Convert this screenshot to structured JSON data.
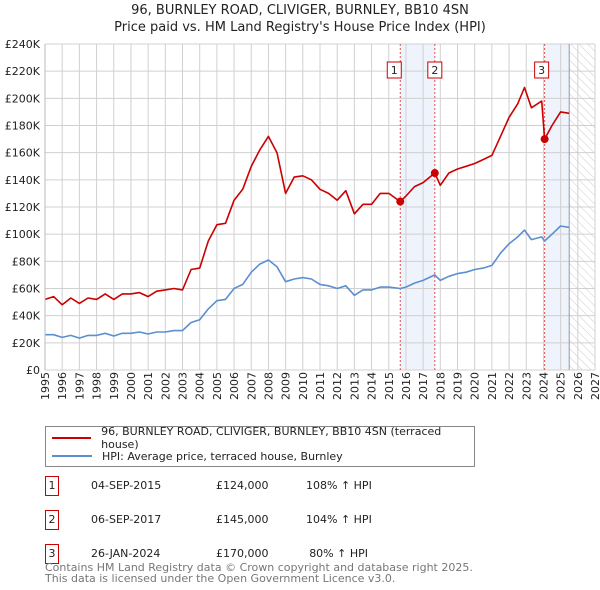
{
  "title": "96, BURNLEY ROAD, CLIVIGER, BURNLEY, BB10 4SN",
  "subtitle": "Price paid vs. HM Land Registry's House Price Index (HPI)",
  "colors": {
    "property": "#cc0000",
    "hpi": "#5b8fd0",
    "shade": "#eef3fc",
    "marker_line": "#e05050"
  },
  "chart_data": {
    "type": "line",
    "xlim": [
      1995,
      2027
    ],
    "ylim": [
      0,
      240000
    ],
    "grid": true,
    "x_ticks": [
      "1995",
      "1996",
      "1997",
      "1998",
      "1999",
      "2000",
      "2001",
      "2002",
      "2003",
      "2004",
      "2005",
      "2006",
      "2007",
      "2008",
      "2009",
      "2010",
      "2011",
      "2012",
      "2013",
      "2014",
      "2015",
      "2016",
      "2017",
      "2018",
      "2019",
      "2020",
      "2021",
      "2022",
      "2023",
      "2024",
      "2025",
      "2026",
      "2027"
    ],
    "y_ticks": [
      "£0",
      "£20K",
      "£40K",
      "£60K",
      "£80K",
      "£100K",
      "£120K",
      "£140K",
      "£160K",
      "£180K",
      "£200K",
      "£220K",
      "£240K"
    ],
    "forecast_start": 2025.5,
    "series": [
      {
        "name": "96, BURNLEY ROAD, CLIVIGER, BURNLEY, BB10 4SN (terraced house)",
        "color": "#cc0000",
        "x": [
          1995,
          1995.5,
          1996,
          1996.5,
          1997,
          1997.5,
          1998,
          1998.5,
          1999,
          1999.5,
          2000,
          2000.5,
          2001,
          2001.5,
          2002,
          2002.5,
          2003,
          2003.5,
          2004,
          2004.5,
          2005,
          2005.5,
          2006,
          2006.5,
          2007,
          2007.5,
          2008,
          2008.5,
          2009,
          2009.5,
          2010,
          2010.5,
          2011,
          2011.5,
          2012,
          2012.5,
          2013,
          2013.5,
          2014,
          2014.5,
          2015,
          2015.67,
          2016,
          2016.5,
          2017,
          2017.68,
          2018,
          2018.5,
          2019,
          2019.5,
          2020,
          2020.5,
          2021,
          2021.5,
          2022,
          2022.5,
          2022.9,
          2023.3,
          2023.9,
          2024.07,
          2024.5,
          2025,
          2025.5
        ],
        "y": [
          52000,
          54000,
          48000,
          53000,
          49000,
          53000,
          52000,
          56000,
          52000,
          56000,
          56000,
          57000,
          54000,
          58000,
          59000,
          60000,
          59000,
          74000,
          75000,
          95000,
          107000,
          108000,
          125000,
          133000,
          150000,
          162000,
          172000,
          160000,
          130000,
          142000,
          143000,
          140000,
          133000,
          130000,
          125000,
          132000,
          115000,
          122000,
          122000,
          130000,
          130000,
          124000,
          128000,
          135000,
          138000,
          145000,
          136000,
          145000,
          148000,
          150000,
          152000,
          155000,
          158000,
          172000,
          186000,
          196000,
          208000,
          193000,
          198000,
          170000,
          180000,
          190000,
          189000
        ]
      },
      {
        "name": "HPI: Average price, terraced house, Burnley",
        "color": "#5b8fd0",
        "x": [
          1995,
          1995.5,
          1996,
          1996.5,
          1997,
          1997.5,
          1998,
          1998.5,
          1999,
          1999.5,
          2000,
          2000.5,
          2001,
          2001.5,
          2002,
          2002.5,
          2003,
          2003.5,
          2004,
          2004.5,
          2005,
          2005.5,
          2006,
          2006.5,
          2007,
          2007.5,
          2008,
          2008.5,
          2009,
          2009.5,
          2010,
          2010.5,
          2011,
          2011.5,
          2012,
          2012.5,
          2013,
          2013.5,
          2014,
          2014.5,
          2015,
          2015.67,
          2016,
          2016.5,
          2017,
          2017.68,
          2018,
          2018.5,
          2019,
          2019.5,
          2020,
          2020.5,
          2021,
          2021.5,
          2022,
          2022.5,
          2022.9,
          2023.3,
          2023.9,
          2024.07,
          2024.5,
          2025,
          2025.5
        ],
        "y": [
          26000,
          26000,
          24000,
          25500,
          23500,
          25500,
          25500,
          27000,
          25000,
          27000,
          27000,
          28000,
          26500,
          28000,
          28000,
          29000,
          29000,
          35000,
          37000,
          45000,
          51000,
          52000,
          60000,
          63000,
          72000,
          78000,
          81000,
          76000,
          65000,
          67000,
          68000,
          67000,
          63000,
          62000,
          60000,
          62000,
          55000,
          59000,
          59000,
          61000,
          61000,
          60000,
          61000,
          64000,
          66000,
          70000,
          66000,
          69000,
          71000,
          72000,
          74000,
          75000,
          77000,
          86000,
          93000,
          98000,
          103000,
          96000,
          98000,
          95000,
          100000,
          106000,
          105000
        ]
      }
    ],
    "sales": [
      {
        "label": "1",
        "x": 2015.67,
        "price": 124000
      },
      {
        "label": "2",
        "x": 2017.68,
        "price": 145000
      },
      {
        "label": "3",
        "x": 2024.07,
        "price": 170000
      }
    ]
  },
  "legend": {
    "property": "96, BURNLEY ROAD, CLIVIGER, BURNLEY, BB10 4SN (terraced house)",
    "hpi": "HPI: Average price, terraced house, Burnley"
  },
  "transactions": [
    {
      "num": "1",
      "date": "04-SEP-2015",
      "price": "£124,000",
      "hpi": "108% ↑ HPI"
    },
    {
      "num": "2",
      "date": "06-SEP-2017",
      "price": "£145,000",
      "hpi": "104% ↑ HPI"
    },
    {
      "num": "3",
      "date": "26-JAN-2024",
      "price": "£170,000",
      "hpi": "80% ↑ HPI"
    }
  ],
  "footer": {
    "line1": "Contains HM Land Registry data © Crown copyright and database right 2025.",
    "line2": "This data is licensed under the Open Government Licence v3.0."
  }
}
